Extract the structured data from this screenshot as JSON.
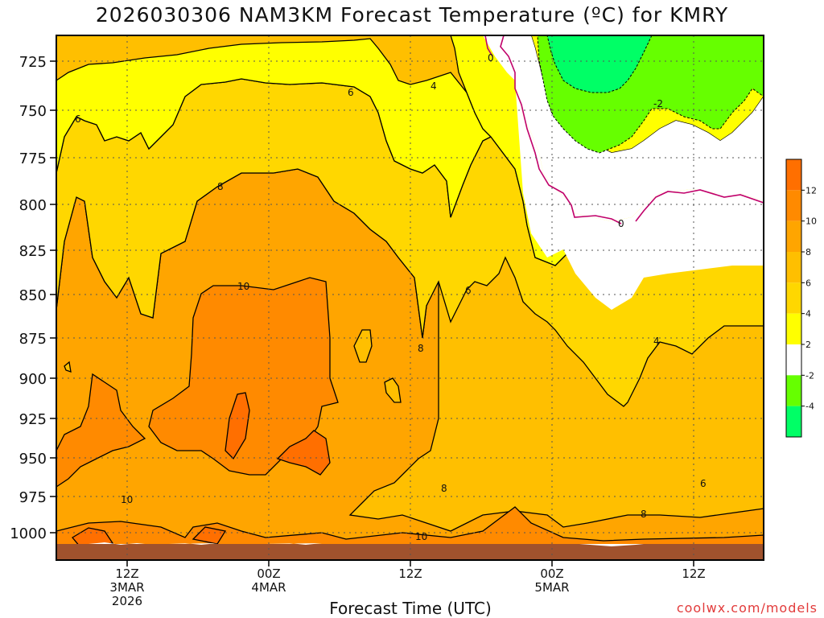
{
  "header": {
    "title": "2026030306 NAM3KM Forecast Temperature (ºC) for KMRY"
  },
  "footer": {
    "xlabel": "Forecast Time (UTC)",
    "credit": "coolwx.com/models"
  },
  "chart_data": {
    "type": "heatmap",
    "title": "2026030306 NAM3KM Forecast Temperature (ºC) for KMRY",
    "xlabel": "Forecast Time (UTC)",
    "ylabel": "",
    "y_ticks": [
      "725",
      "750",
      "775",
      "800",
      "825",
      "850",
      "875",
      "900",
      "925",
      "950",
      "975",
      "1000"
    ],
    "x_ticks": [
      {
        "lines": [
          "12Z",
          "3MAR",
          "2026"
        ]
      },
      {
        "lines": [
          "00Z",
          "4MAR"
        ]
      },
      {
        "lines": [
          "12Z"
        ]
      },
      {
        "lines": [
          "00Z",
          "5MAR"
        ]
      },
      {
        "lines": [
          "12Z"
        ]
      }
    ],
    "colorbar": {
      "ticks": [
        "12",
        "10",
        "8",
        "6",
        "4",
        "2",
        "-2",
        "-4"
      ],
      "colors": [
        "#ff6f00",
        "#ff8a00",
        "#ffa500",
        "#ffbf00",
        "#ffd700",
        "#ffff00",
        "#ffffff",
        "#66ff00",
        "#00ff66"
      ]
    },
    "contour_labels": [
      "10",
      "8",
      "6",
      "4",
      "0",
      "-2",
      "6",
      "4",
      "8",
      "8",
      "10",
      "6",
      "8"
    ],
    "grid": true
  }
}
